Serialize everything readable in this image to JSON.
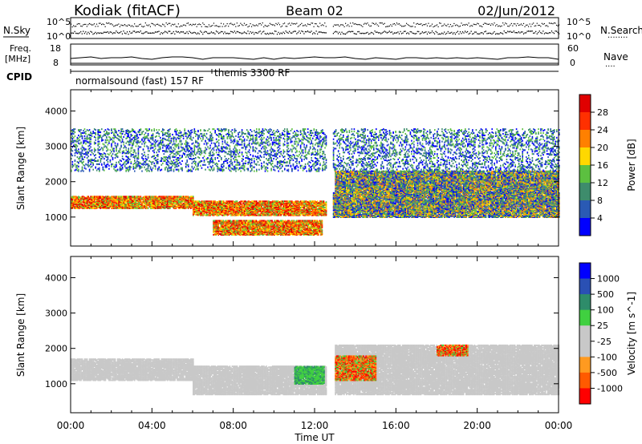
{
  "header": {
    "station": "Kodiak (fitACF)",
    "beam": "Beam 02",
    "date": "02/Jun/2012"
  },
  "summary_panels": {
    "nsky_label": "N.Sky",
    "nsky_ticks": [
      "10^5",
      "10^0"
    ],
    "nsearch_label": "N.Search",
    "nsearch_ticks": [
      "10^5",
      "10^0"
    ],
    "freq_label_line1": "Freq.",
    "freq_label_line2": "[MHz]",
    "freq_ticks": [
      "18",
      "8"
    ],
    "nave_label": "Nave",
    "nave_ticks": [
      "60",
      "0"
    ],
    "cpid_label": "CPID",
    "cpid_modes": [
      {
        "name": "normalsound (fast)",
        "id": "157",
        "suffix": "RF"
      },
      {
        "name": "themis",
        "id": "3300",
        "suffix": "RF"
      }
    ]
  },
  "chart_data": [
    {
      "type": "heatmap",
      "title": "",
      "xlabel": "Time UT",
      "ylabel": "Slant Range [km]",
      "xlim": [
        "00:00",
        "24:00"
      ],
      "xticks": [
        "00:00",
        "04:00",
        "08:00",
        "12:00",
        "16:00",
        "20:00",
        "00:00"
      ],
      "ylim": [
        180,
        4600
      ],
      "yticks": [
        1000,
        2000,
        3000,
        4000
      ],
      "data_gap_ut": [
        12.6,
        12.85
      ],
      "colorbar": {
        "label": "Power [dB]",
        "ticks": [
          28,
          24,
          20,
          16,
          12,
          8,
          4
        ],
        "colors": [
          "#0000ff",
          "#2a5ab4",
          "#3e8c6c",
          "#5cc040",
          "#ffd800",
          "#ff8000",
          "#ff3000",
          "#e00000"
        ]
      },
      "regions": [
        {
          "t0": 0.0,
          "t1": 6.0,
          "r0": 1250,
          "r1": 1600,
          "level": "high"
        },
        {
          "t0": 6.0,
          "t1": 12.6,
          "r0": 1050,
          "r1": 1450,
          "level": "high"
        },
        {
          "t0": 7.0,
          "t1": 12.4,
          "r0": 500,
          "r1": 900,
          "level": "high"
        },
        {
          "t0": 12.9,
          "t1": 24.0,
          "r0": 1000,
          "r1": 1700,
          "level": "medium"
        },
        {
          "t0": 13.0,
          "t1": 24.0,
          "r0": 1700,
          "r1": 2300,
          "level": "medium"
        },
        {
          "t0": 0.0,
          "t1": 24.0,
          "r0": 2300,
          "r1": 3500,
          "level": "low"
        }
      ]
    },
    {
      "type": "heatmap",
      "title": "",
      "xlabel": "Time UT",
      "ylabel": "Slant Range [km]",
      "xlim": [
        "00:00",
        "24:00"
      ],
      "xticks": [
        "00:00",
        "04:00",
        "08:00",
        "12:00",
        "16:00",
        "20:00",
        "00:00"
      ],
      "ylim": [
        180,
        4600
      ],
      "yticks": [
        1000,
        2000,
        3000,
        4000
      ],
      "data_gap_ut": [
        12.6,
        12.85
      ],
      "colorbar": {
        "label": "Velocity [m s^-1]",
        "ticks": [
          "1000",
          "500",
          "100",
          "25",
          "-25",
          "-100",
          "-500",
          "-1000"
        ],
        "colors": [
          "#ff0000",
          "#ff5a00",
          "#ff9a20",
          "#c8c8c8",
          "#c8c8c8",
          "#40d040",
          "#2e8c6a",
          "#2a50b4",
          "#0000ff"
        ]
      },
      "regions": [
        {
          "t0": 0.0,
          "t1": 6.0,
          "r0": 1100,
          "r1": 1700,
          "level": "ground"
        },
        {
          "t0": 6.0,
          "t1": 12.6,
          "r0": 700,
          "r1": 1500,
          "level": "ground"
        },
        {
          "t0": 13.0,
          "t1": 24.0,
          "r0": 700,
          "r1": 2100,
          "level": "ground"
        },
        {
          "t0": 13.0,
          "t1": 15.0,
          "r0": 1100,
          "r1": 1800,
          "level": "toward"
        },
        {
          "t0": 18.0,
          "t1": 19.5,
          "r0": 1800,
          "r1": 2100,
          "level": "toward"
        },
        {
          "t0": 11.0,
          "t1": 12.5,
          "r0": 1000,
          "r1": 1500,
          "level": "away"
        }
      ]
    }
  ]
}
